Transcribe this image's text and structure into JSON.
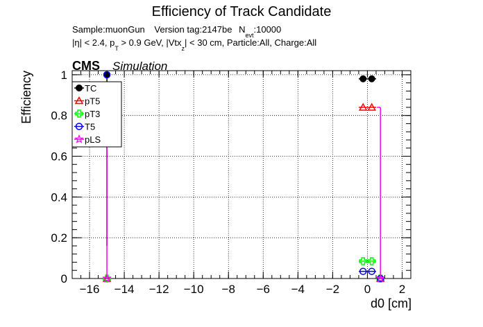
{
  "title": "Efficiency of Track Candidate",
  "info": {
    "sample": "Sample:muonGun",
    "version": "Version tag:2147be",
    "nevt_label": "N",
    "nevt_sub": "evt",
    "nevt_value": ":10000",
    "eta": "|η| < 2.4, p",
    "pt_sub": "T",
    "pt_cut": " > 0.9 GeV, |Vtx",
    "vtx_sub": "z",
    "vtx_rest": "| < 30 cm, Particle:All, Charge:All"
  },
  "cms": {
    "label": "CMS",
    "sublabel": "Simulation"
  },
  "chart_data": {
    "type": "scatter",
    "xlabel": "d0 [cm]",
    "ylabel": "Efficiency",
    "xlim": [
      -17,
      2.5
    ],
    "ylim": [
      0,
      1.02
    ],
    "grid": true,
    "legend_position": "top-left",
    "x_ticks": [
      -16,
      -14,
      -12,
      -10,
      -8,
      -6,
      -4,
      -2,
      0,
      2
    ],
    "x_tick_labels": [
      "−16",
      "−14",
      "−12",
      "−10",
      "−8",
      "−6",
      "−4",
      "−2",
      "0",
      "2"
    ],
    "y_ticks": [
      0,
      0.2,
      0.4,
      0.6,
      0.8,
      1
    ],
    "y_tick_labels": [
      "0",
      "0.2",
      "0.4",
      "0.6",
      "0.8",
      "1"
    ],
    "series": [
      {
        "name": "TC",
        "color": "#000000",
        "marker": "filled-circle",
        "points": [
          {
            "x": -0.25,
            "y": 0.98,
            "xerr": 0.25
          },
          {
            "x": 0.25,
            "y": 0.98,
            "xerr": 0.25
          },
          {
            "x": -15,
            "y": 1.0,
            "err_low": 0.84
          }
        ]
      },
      {
        "name": "pT5",
        "color": "#ff0000",
        "marker": "open-triangle",
        "points": [
          {
            "x": -0.25,
            "y": 0.84,
            "xerr": 0.25
          },
          {
            "x": 0.25,
            "y": 0.84,
            "xerr": 0.25
          },
          {
            "x": -15,
            "y": 0.0
          },
          {
            "x": 0.75,
            "y": 0.0
          }
        ]
      },
      {
        "name": "pT3",
        "color": "#00ff00",
        "marker": "open-cross",
        "points": [
          {
            "x": -0.25,
            "y": 0.085,
            "xerr": 0.25
          },
          {
            "x": 0.25,
            "y": 0.085,
            "xerr": 0.25
          },
          {
            "x": -15,
            "y": 0.0
          },
          {
            "x": 0.75,
            "y": 0.0
          }
        ]
      },
      {
        "name": "T5",
        "color": "#0000ff",
        "marker": "open-circle",
        "points": [
          {
            "x": -0.25,
            "y": 0.035,
            "xerr": 0.25
          },
          {
            "x": 0.25,
            "y": 0.035,
            "xerr": 0.25
          },
          {
            "x": -15,
            "y": 1.0
          },
          {
            "x": 0.75,
            "y": 0.0
          }
        ]
      },
      {
        "name": "pLS",
        "color": "#ff00ff",
        "marker": "open-star",
        "points": [
          {
            "x": -15,
            "y": 0.0,
            "err_high": 0.84
          },
          {
            "x": 0.75,
            "y": 0.0,
            "err_high": 0.84
          }
        ]
      }
    ]
  }
}
